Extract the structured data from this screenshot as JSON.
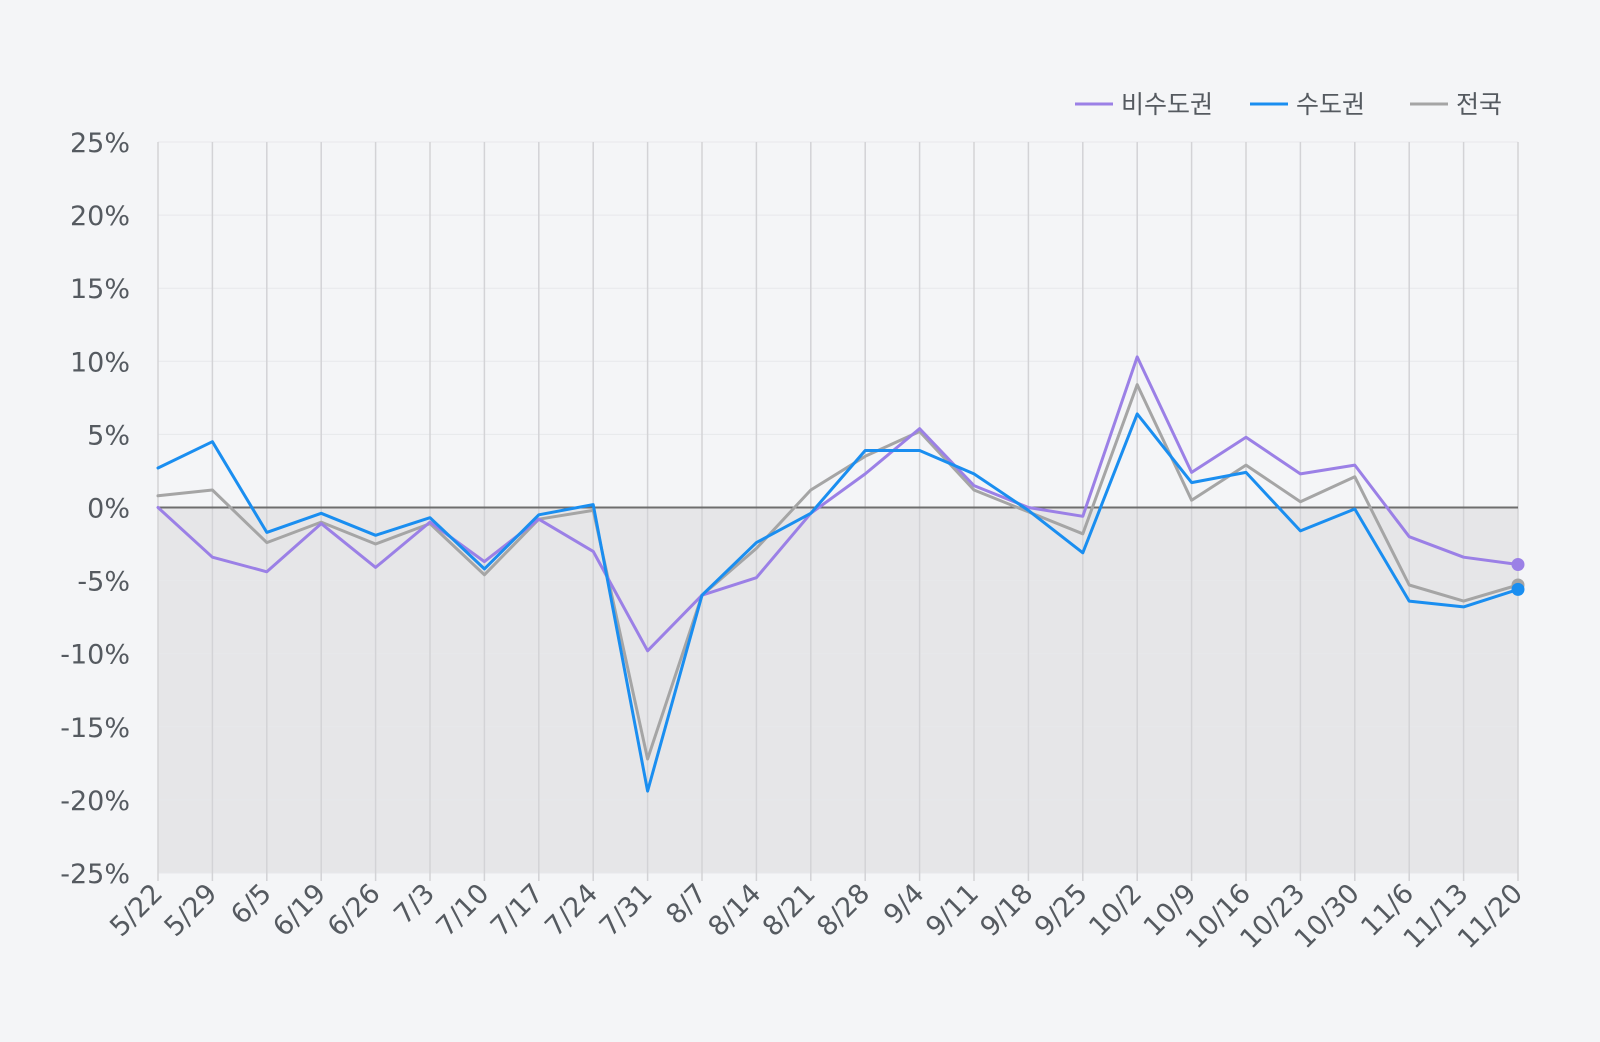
{
  "colors": {
    "background": "#f4f5f7",
    "negative_band": "#e6e6e8",
    "grid": "#d3d3d6",
    "zero_line": "#6e6e6e",
    "axis_text": "#555a60"
  },
  "chart_data": {
    "type": "line",
    "title": "",
    "xlabel": "",
    "ylabel": "",
    "categories": [
      "5/22",
      "5/29",
      "6/5",
      "6/19",
      "6/26",
      "7/3",
      "7/10",
      "7/17",
      "7/24",
      "7/31",
      "8/7",
      "8/14",
      "8/21",
      "8/28",
      "9/4",
      "9/11",
      "9/18",
      "9/25",
      "10/2",
      "10/9",
      "10/16",
      "10/23",
      "10/30",
      "11/6",
      "11/13",
      "11/20"
    ],
    "ylim": [
      -25,
      25
    ],
    "yticks": [
      25,
      20,
      15,
      10,
      5,
      0,
      -5,
      -10,
      -15,
      -20,
      -25
    ],
    "ytick_labels": [
      "25%",
      "20%",
      "15%",
      "10%",
      "5%",
      "0%",
      "-5%",
      "-10%",
      "-15%",
      "-20%",
      "-25%"
    ],
    "grid": true,
    "negative_region_shaded": true,
    "legend_position": "top-right",
    "series": [
      {
        "name": "비수도권",
        "color": "#9b80e6",
        "values": [
          0.0,
          -3.4,
          -4.4,
          -1.1,
          -4.1,
          -1.0,
          -3.7,
          -0.8,
          -3.0,
          -9.8,
          -6.0,
          -4.8,
          -0.4,
          2.3,
          5.4,
          1.5,
          0.0,
          -0.6,
          10.3,
          2.4,
          4.8,
          2.3,
          2.9,
          -2.0,
          -3.4,
          -3.9
        ]
      },
      {
        "name": "수도권",
        "color": "#1a8ef0",
        "values": [
          2.7,
          4.5,
          -1.7,
          -0.4,
          -1.9,
          -0.7,
          -4.2,
          -0.5,
          0.2,
          -19.4,
          -6.0,
          -2.4,
          -0.4,
          3.9,
          3.9,
          2.3,
          -0.2,
          -3.1,
          6.4,
          1.7,
          2.4,
          -1.6,
          -0.1,
          -6.4,
          -6.8,
          -5.6
        ]
      },
      {
        "name": "전국",
        "color": "#a5a5a5",
        "values": [
          0.8,
          1.2,
          -2.4,
          -1.0,
          -2.5,
          -1.1,
          -4.6,
          -0.8,
          -0.2,
          -17.2,
          -6.0,
          -2.8,
          1.2,
          3.5,
          5.2,
          1.2,
          -0.3,
          -1.8,
          8.4,
          0.5,
          2.9,
          0.4,
          2.1,
          -5.3,
          -6.4,
          -5.3
        ]
      }
    ]
  }
}
